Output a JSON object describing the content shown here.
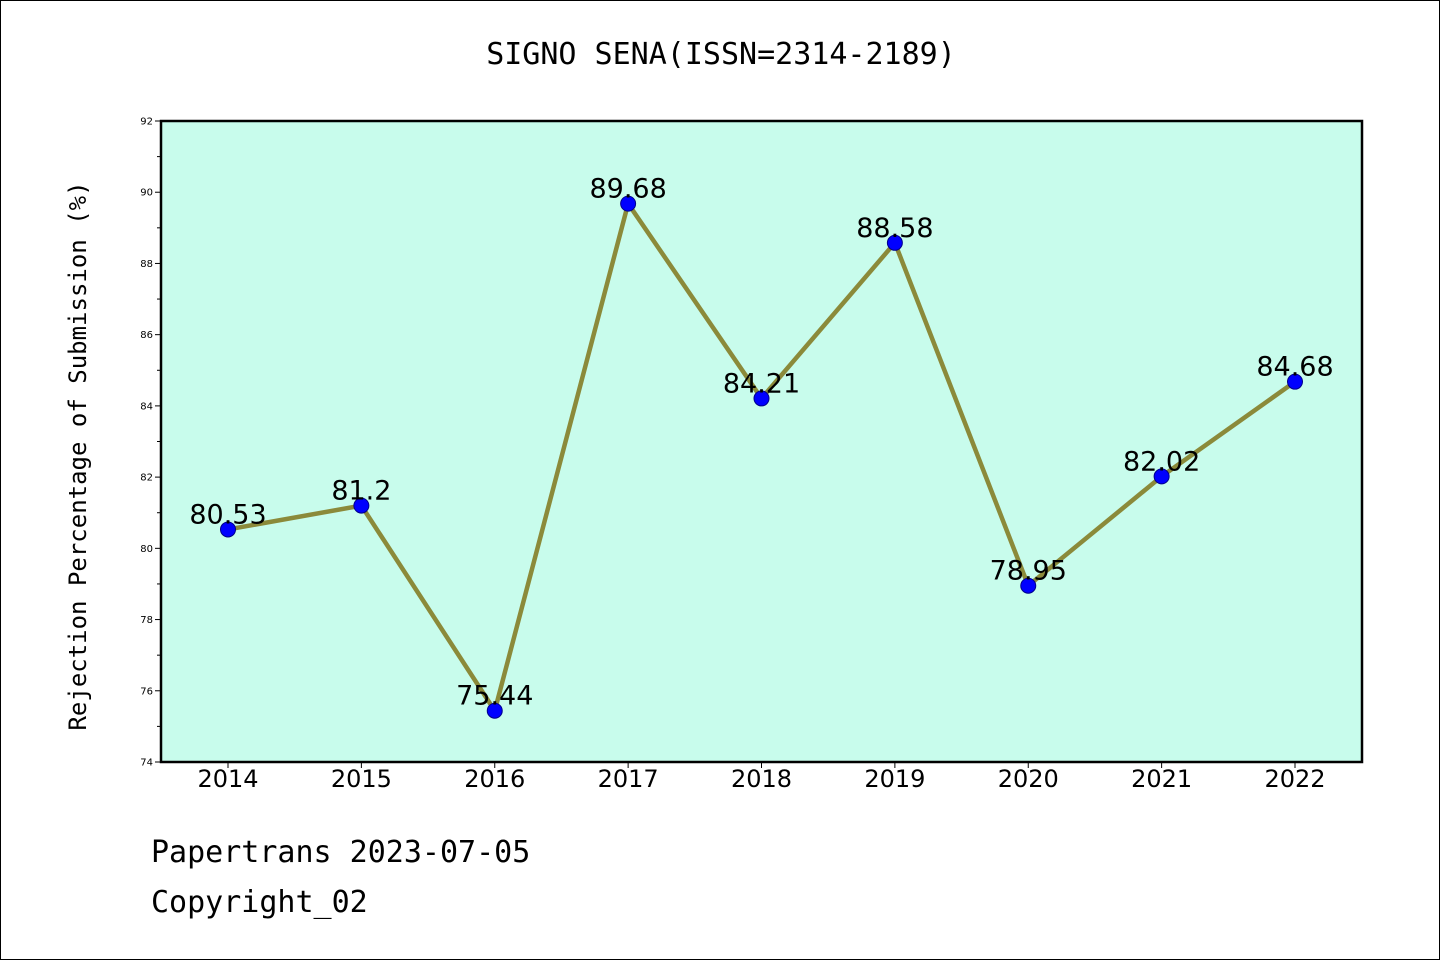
{
  "chart_data": {
    "type": "line",
    "title": "SIGNO SENA(ISSN=2314-2189)",
    "xlabel": "",
    "ylabel": "Rejection Percentage of Submission (%)",
    "categories": [
      "2014",
      "2015",
      "2016",
      "2017",
      "2018",
      "2019",
      "2020",
      "2021",
      "2022"
    ],
    "series": [
      {
        "values": [
          80.53,
          81.2,
          75.44,
          89.68,
          84.21,
          88.58,
          78.95,
          82.02,
          84.68
        ]
      }
    ],
    "data_labels": [
      "80.53",
      "81.2",
      "75.44",
      "89.68",
      "84.21",
      "88.58",
      "78.95",
      "82.02",
      "84.68"
    ],
    "ylim": [
      74,
      92
    ],
    "yticks": [
      74,
      76,
      78,
      80,
      82,
      84,
      86,
      88,
      90,
      92
    ],
    "grid": false,
    "legend": "none",
    "colors": {
      "plot_background": "#c8fcec",
      "line": "#8b8a3a",
      "marker": "#0000ff"
    }
  },
  "footer": {
    "line1": "Papertrans 2023-07-05",
    "line2": "Copyright_02"
  }
}
